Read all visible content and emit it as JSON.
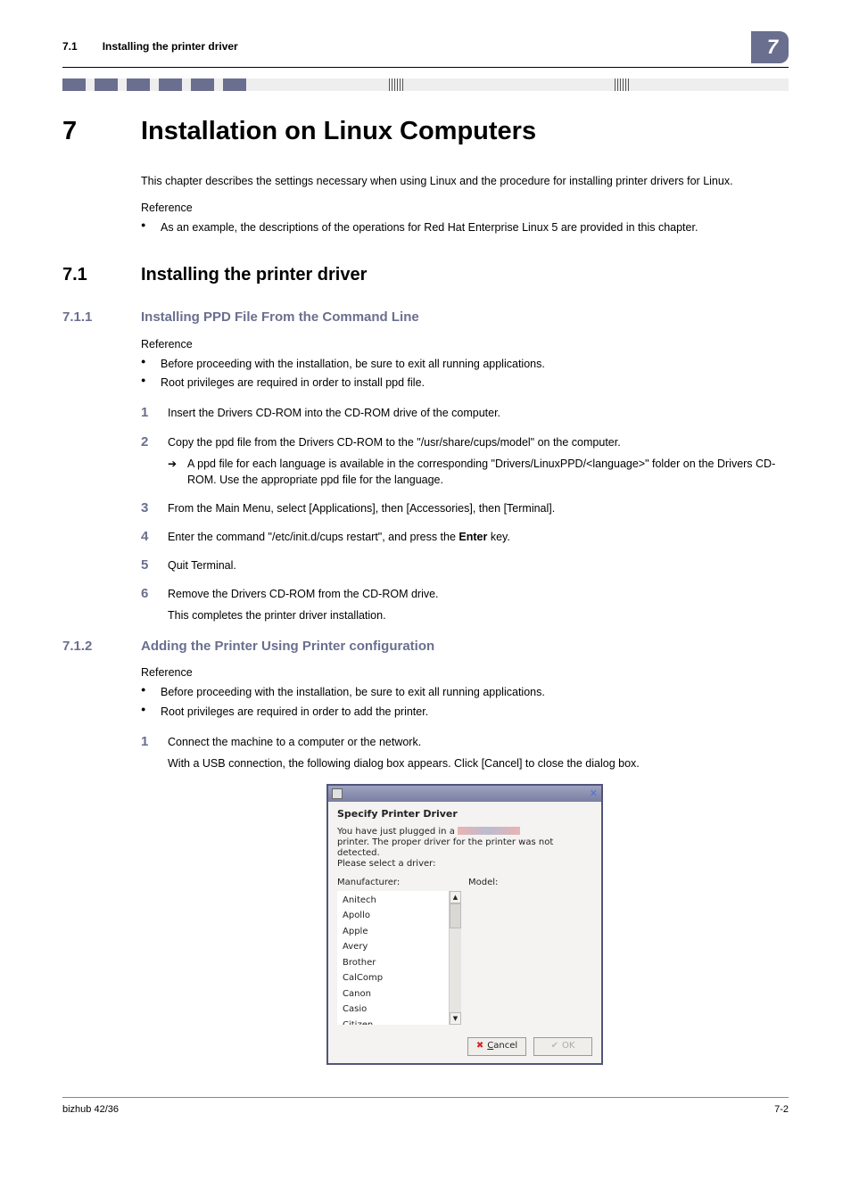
{
  "header": {
    "section_num": "7.1",
    "section_title": "Installing the printer driver",
    "badge": "7"
  },
  "chapter": {
    "num": "7",
    "title": "Installation on Linux Computers"
  },
  "intro_para": "This chapter describes the settings necessary when using Linux and the procedure for installing printer drivers for Linux.",
  "reference_label": "Reference",
  "intro_bullets": [
    "As an example, the descriptions of the operations for Red Hat Enterprise Linux 5 are provided in this chapter."
  ],
  "s7_1": {
    "num": "7.1",
    "title": "Installing the printer driver"
  },
  "s7_1_1": {
    "num": "7.1.1",
    "title": "Installing PPD File From the Command Line",
    "ref_bullets": [
      "Before proceeding with the installation, be sure to exit all running applications.",
      "Root privileges are required in order to install ppd file."
    ],
    "steps": {
      "1": "Insert the Drivers CD-ROM into the CD-ROM drive of the computer.",
      "2": "Copy the ppd file from the Drivers CD-ROM to the \"/usr/share/cups/model\" on the computer.",
      "2_sub": "A ppd file for each language is available in the corresponding \"Drivers/LinuxPPD/<language>\" folder on the Drivers CD-ROM. Use the appropriate ppd file for the language.",
      "3": "From the Main Menu, select [Applications], then [Accessories], then [Terminal].",
      "4_a": "Enter the command \"/etc/init.d/cups restart\", and press the ",
      "4_b": "Enter",
      "4_c": " key.",
      "5": "Quit Terminal.",
      "6": "Remove the Drivers CD-ROM from the CD-ROM drive.",
      "6_sub": "This completes the printer driver installation."
    }
  },
  "s7_1_2": {
    "num": "7.1.2",
    "title": "Adding the Printer Using Printer configuration",
    "ref_bullets": [
      "Before proceeding with the installation, be sure to exit all running applications.",
      "Root privileges are required in order to add the printer."
    ],
    "steps": {
      "1": "Connect the machine to a computer or the network.",
      "1_sub": "With a USB connection, the following dialog box appears. Click [Cancel] to close the dialog box."
    }
  },
  "dialog": {
    "title": "Specify Printer Driver",
    "msg_a": "You have just plugged in a ",
    "msg_b": "printer. The proper driver for the printer was not detected.",
    "msg_c": "Please select a driver:",
    "manufacturer_label": "Manufacturer:",
    "model_label": "Model:",
    "manufacturers": [
      "Anitech",
      "Apollo",
      "Apple",
      "Avery",
      "Brother",
      "CalComp",
      "Canon",
      "Casio",
      "Citizen"
    ],
    "cancel": "Cancel",
    "ok": "OK"
  },
  "footer": {
    "left": "bizhub 42/36",
    "right": "7-2"
  },
  "colors": {
    "accent": "#6a6f8f",
    "bg": "#ffffff"
  }
}
